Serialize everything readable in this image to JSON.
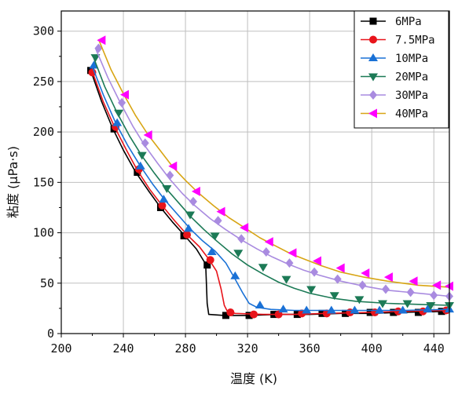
{
  "chart_data": {
    "type": "line",
    "xlabel": "温度 (K)",
    "ylabel": "粘度 (μPa·s)",
    "xlim": [
      200,
      450
    ],
    "ylim": [
      0,
      320
    ],
    "xticks": [
      200,
      240,
      280,
      320,
      360,
      400,
      440
    ],
    "yticks": [
      0,
      50,
      100,
      150,
      200,
      250,
      300
    ],
    "grid": true,
    "legend_position": "top-right",
    "series": [
      {
        "name": "6MPa",
        "color": "#000000",
        "marker": "square",
        "line": [
          [
            219,
            261
          ],
          [
            226,
            230
          ],
          [
            233,
            204
          ],
          [
            240,
            182
          ],
          [
            248,
            160
          ],
          [
            256,
            142
          ],
          [
            264,
            125
          ],
          [
            272,
            110
          ],
          [
            279,
            98
          ],
          [
            287,
            84
          ],
          [
            293,
            69
          ],
          [
            294,
            30
          ],
          [
            295,
            19
          ],
          [
            305,
            18
          ],
          [
            320,
            18
          ],
          [
            340,
            19
          ],
          [
            360,
            19
          ],
          [
            380,
            20
          ],
          [
            400,
            20
          ],
          [
            420,
            21
          ],
          [
            450,
            22
          ]
        ],
        "markers": [
          [
            219,
            261
          ],
          [
            234,
            203
          ],
          [
            249,
            160
          ],
          [
            264,
            125
          ],
          [
            279,
            97
          ],
          [
            294,
            68
          ],
          [
            306,
            18
          ],
          [
            321,
            18
          ],
          [
            337,
            19
          ],
          [
            352,
            19
          ],
          [
            368,
            20
          ],
          [
            383,
            20
          ],
          [
            399,
            21
          ],
          [
            414,
            21
          ],
          [
            430,
            21
          ],
          [
            445,
            22
          ]
        ]
      },
      {
        "name": "7.5MPa",
        "color": "#e8141b",
        "marker": "circle",
        "line": [
          [
            220,
            260
          ],
          [
            227,
            230
          ],
          [
            234,
            206
          ],
          [
            242,
            182
          ],
          [
            249,
            162
          ],
          [
            257,
            143
          ],
          [
            265,
            127
          ],
          [
            273,
            112
          ],
          [
            281,
            98
          ],
          [
            289,
            86
          ],
          [
            295,
            74
          ],
          [
            300,
            62
          ],
          [
            303,
            44
          ],
          [
            305,
            28
          ],
          [
            307,
            22
          ],
          [
            312,
            20
          ],
          [
            330,
            19
          ],
          [
            350,
            19
          ],
          [
            370,
            20
          ],
          [
            400,
            21
          ],
          [
            420,
            22
          ],
          [
            450,
            23
          ]
        ],
        "markers": [
          [
            220,
            259
          ],
          [
            235,
            205
          ],
          [
            250,
            163
          ],
          [
            265,
            127
          ],
          [
            281,
            98
          ],
          [
            296,
            73
          ],
          [
            309,
            21
          ],
          [
            324,
            19
          ],
          [
            340,
            19
          ],
          [
            355,
            20
          ],
          [
            371,
            20
          ],
          [
            386,
            21
          ],
          [
            402,
            21
          ],
          [
            417,
            22
          ],
          [
            433,
            22
          ],
          [
            448,
            23
          ]
        ]
      },
      {
        "name": "10MPa",
        "color": "#1a71d6",
        "marker": "triangle-up",
        "line": [
          [
            220,
            265
          ],
          [
            227,
            237
          ],
          [
            235,
            209
          ],
          [
            243,
            186
          ],
          [
            251,
            166
          ],
          [
            259,
            148
          ],
          [
            267,
            132
          ],
          [
            275,
            118
          ],
          [
            283,
            104
          ],
          [
            291,
            92
          ],
          [
            299,
            82
          ],
          [
            306,
            70
          ],
          [
            312,
            54
          ],
          [
            317,
            40
          ],
          [
            321,
            30
          ],
          [
            326,
            26
          ],
          [
            335,
            24
          ],
          [
            350,
            23
          ],
          [
            370,
            23
          ],
          [
            400,
            23
          ],
          [
            420,
            23
          ],
          [
            450,
            24
          ]
        ],
        "markers": [
          [
            221,
            266
          ],
          [
            236,
            209
          ],
          [
            251,
            166
          ],
          [
            266,
            133
          ],
          [
            282,
            104
          ],
          [
            297,
            81
          ],
          [
            312,
            57
          ],
          [
            328,
            28
          ],
          [
            343,
            24
          ],
          [
            358,
            23
          ],
          [
            374,
            23
          ],
          [
            389,
            23
          ],
          [
            405,
            23
          ],
          [
            420,
            23
          ],
          [
            436,
            24
          ],
          [
            450,
            24
          ]
        ]
      },
      {
        "name": "20MPa",
        "color": "#1c7a56",
        "marker": "triangle-down",
        "line": [
          [
            221,
            273
          ],
          [
            228,
            245
          ],
          [
            236,
            219
          ],
          [
            244,
            196
          ],
          [
            252,
            176
          ],
          [
            260,
            159
          ],
          [
            268,
            143
          ],
          [
            276,
            129
          ],
          [
            284,
            115
          ],
          [
            292,
            103
          ],
          [
            300,
            92
          ],
          [
            310,
            79
          ],
          [
            320,
            68
          ],
          [
            330,
            59
          ],
          [
            340,
            51
          ],
          [
            350,
            45
          ],
          [
            360,
            40
          ],
          [
            375,
            35
          ],
          [
            390,
            32
          ],
          [
            410,
            30
          ],
          [
            430,
            29
          ],
          [
            450,
            28
          ]
        ],
        "markers": [
          [
            222,
            274
          ],
          [
            237,
            219
          ],
          [
            252,
            177
          ],
          [
            268,
            144
          ],
          [
            283,
            118
          ],
          [
            299,
            97
          ],
          [
            314,
            80
          ],
          [
            330,
            66
          ],
          [
            345,
            54
          ],
          [
            361,
            44
          ],
          [
            376,
            38
          ],
          [
            392,
            34
          ],
          [
            407,
            30
          ],
          [
            423,
            30
          ],
          [
            438,
            28
          ],
          [
            450,
            28
          ]
        ]
      },
      {
        "name": "30MPa",
        "color": "#a98be0",
        "marker": "diamond",
        "line": [
          [
            222,
            283
          ],
          [
            230,
            254
          ],
          [
            238,
            229
          ],
          [
            246,
            206
          ],
          [
            254,
            186
          ],
          [
            262,
            169
          ],
          [
            270,
            153
          ],
          [
            278,
            139
          ],
          [
            286,
            127
          ],
          [
            296,
            114
          ],
          [
            306,
            103
          ],
          [
            316,
            93
          ],
          [
            326,
            84
          ],
          [
            336,
            76
          ],
          [
            346,
            69
          ],
          [
            356,
            63
          ],
          [
            366,
            58
          ],
          [
            380,
            52
          ],
          [
            395,
            47
          ],
          [
            410,
            43
          ],
          [
            430,
            40
          ],
          [
            450,
            37
          ]
        ],
        "markers": [
          [
            224,
            283
          ],
          [
            239,
            229
          ],
          [
            254,
            189
          ],
          [
            270,
            157
          ],
          [
            285,
            131
          ],
          [
            301,
            112
          ],
          [
            316,
            94
          ],
          [
            332,
            81
          ],
          [
            347,
            70
          ],
          [
            363,
            61
          ],
          [
            378,
            54
          ],
          [
            394,
            48
          ],
          [
            409,
            44
          ],
          [
            425,
            41
          ],
          [
            440,
            38
          ],
          [
            450,
            37
          ]
        ]
      },
      {
        "name": "40MPa",
        "color": "#d8a514",
        "marker": "triangle-left",
        "line": [
          [
            224,
            292
          ],
          [
            232,
            262
          ],
          [
            240,
            238
          ],
          [
            248,
            216
          ],
          [
            256,
            197
          ],
          [
            264,
            181
          ],
          [
            272,
            165
          ],
          [
            280,
            152
          ],
          [
            288,
            140
          ],
          [
            298,
            127
          ],
          [
            308,
            115
          ],
          [
            318,
            105
          ],
          [
            328,
            95
          ],
          [
            338,
            87
          ],
          [
            348,
            79
          ],
          [
            358,
            73
          ],
          [
            368,
            67
          ],
          [
            380,
            61
          ],
          [
            395,
            56
          ],
          [
            410,
            52
          ],
          [
            430,
            48
          ],
          [
            450,
            46
          ]
        ],
        "markers": [
          [
            226,
            291
          ],
          [
            241,
            237
          ],
          [
            256,
            197
          ],
          [
            272,
            166
          ],
          [
            287,
            141
          ],
          [
            303,
            121
          ],
          [
            318,
            105
          ],
          [
            334,
            91
          ],
          [
            349,
            80
          ],
          [
            365,
            72
          ],
          [
            380,
            65
          ],
          [
            396,
            60
          ],
          [
            411,
            56
          ],
          [
            427,
            52
          ],
          [
            442,
            48
          ],
          [
            450,
            47
          ]
        ],
        "marker_color": "#ff00ff"
      }
    ]
  }
}
